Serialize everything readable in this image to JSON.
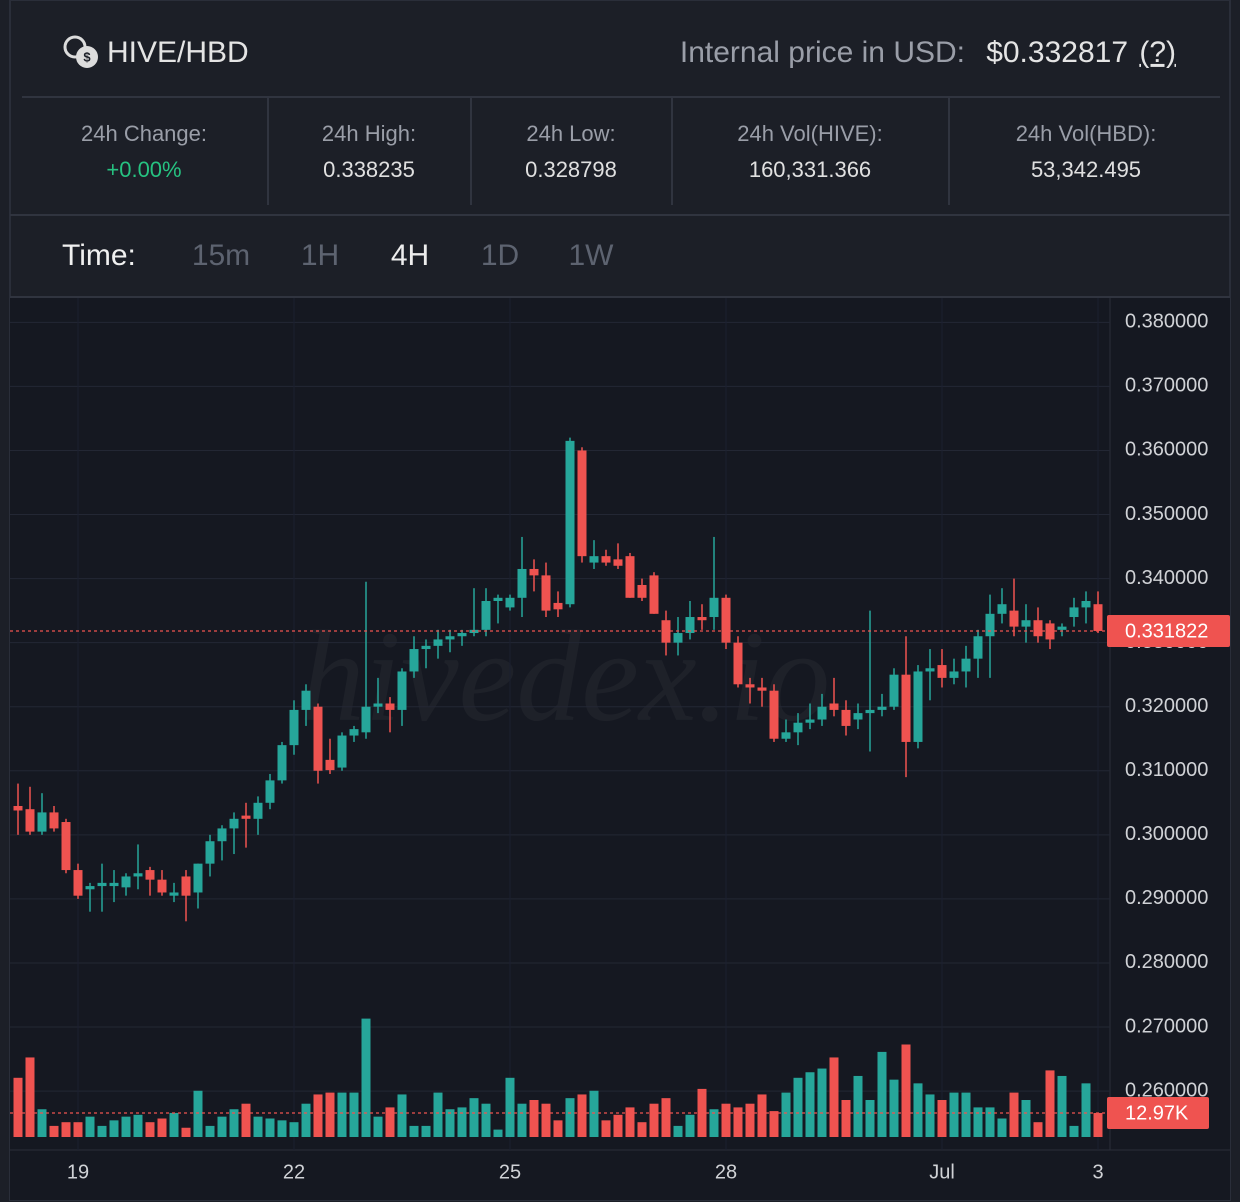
{
  "header": {
    "pair": "HIVE/HBD",
    "price_label": "Internal price in USD:",
    "price": "$0.332817",
    "help": "(?)"
  },
  "stats": [
    {
      "label": "24h Change:",
      "value": "+0.00%"
    },
    {
      "label": "24h High:",
      "value": "0.338235"
    },
    {
      "label": "24h Low:",
      "value": "0.328798"
    },
    {
      "label": "24h Vol(HIVE):",
      "value": "160,331.366"
    },
    {
      "label": "24h Vol(HBD):",
      "value": "53,342.495"
    }
  ],
  "timeframes": {
    "label": "Time:",
    "options": [
      "15m",
      "1H",
      "4H",
      "1D",
      "1W"
    ],
    "active": "4H"
  },
  "chart_data": {
    "type": "candlestick",
    "watermark": "hivedex.io",
    "up_color": "#26a69a",
    "down_color": "#ef5350",
    "grid": true,
    "xlim": [
      -0.667,
      91
    ],
    "xticks": [
      {
        "value": 5,
        "label": "19"
      },
      {
        "value": 23,
        "label": "22"
      },
      {
        "value": 41,
        "label": "25"
      },
      {
        "value": 59,
        "label": "28"
      },
      {
        "value": 77,
        "label": "Jul"
      },
      {
        "value": 90,
        "label": "3"
      }
    ],
    "ylim": [
      0.2508,
      0.3838
    ],
    "yticks": [
      {
        "value": 0.38,
        "label": "0.380000"
      },
      {
        "value": 0.37,
        "label": "0.370000"
      },
      {
        "value": 0.36,
        "label": "0.360000"
      },
      {
        "value": 0.35,
        "label": "0.350000"
      },
      {
        "value": 0.34,
        "label": "0.340000"
      },
      {
        "value": 0.33,
        "label": "0.330000"
      },
      {
        "value": 0.32,
        "label": "0.320000"
      },
      {
        "value": 0.31,
        "label": "0.310000"
      },
      {
        "value": 0.3,
        "label": "0.300000"
      },
      {
        "value": 0.29,
        "label": "0.290000"
      },
      {
        "value": 0.28,
        "label": "0.280000"
      },
      {
        "value": 0.27,
        "label": "0.270000"
      },
      {
        "value": 0.26,
        "label": "0.260000"
      }
    ],
    "candles": {
      "open": [
        0.3045,
        0.304,
        0.3005,
        0.3035,
        0.302,
        0.2945,
        0.2915,
        0.292,
        0.292,
        0.2918,
        0.2935,
        0.2945,
        0.293,
        0.2905,
        0.2935,
        0.291,
        0.2955,
        0.299,
        0.301,
        0.303,
        0.3025,
        0.305,
        0.3085,
        0.314,
        0.3195,
        0.32,
        0.3117,
        0.3105,
        0.3155,
        0.316,
        0.32,
        0.3205,
        0.3195,
        0.3255,
        0.329,
        0.3295,
        0.3305,
        0.331,
        0.3315,
        0.332,
        0.3365,
        0.3355,
        0.337,
        0.3415,
        0.3405,
        0.3362,
        0.336,
        0.36,
        0.3425,
        0.3435,
        0.343,
        0.3435,
        0.339,
        0.3405,
        0.3335,
        0.33,
        0.3315,
        0.334,
        0.334,
        0.337,
        0.33,
        0.3235,
        0.323,
        0.3225,
        0.315,
        0.316,
        0.3175,
        0.318,
        0.3205,
        0.3195,
        0.318,
        0.319,
        0.3195,
        0.32,
        0.325,
        0.3145,
        0.3255,
        0.3265,
        0.3245,
        0.3255,
        0.3275,
        0.331,
        0.3345,
        0.335,
        0.3325,
        0.3335,
        0.333,
        0.332,
        0.334,
        0.3355,
        0.336
      ],
      "high": [
        0.308,
        0.3075,
        0.3065,
        0.3045,
        0.3025,
        0.2955,
        0.2925,
        0.2955,
        0.2945,
        0.294,
        0.2985,
        0.295,
        0.2945,
        0.2925,
        0.2945,
        0.2955,
        0.3,
        0.3015,
        0.3035,
        0.305,
        0.306,
        0.3095,
        0.3145,
        0.321,
        0.3235,
        0.3205,
        0.315,
        0.316,
        0.317,
        0.3395,
        0.3245,
        0.3215,
        0.326,
        0.331,
        0.3305,
        0.332,
        0.332,
        0.332,
        0.3385,
        0.3385,
        0.3375,
        0.3375,
        0.3465,
        0.343,
        0.3425,
        0.338,
        0.362,
        0.3605,
        0.346,
        0.3445,
        0.3455,
        0.344,
        0.34,
        0.341,
        0.335,
        0.334,
        0.3365,
        0.336,
        0.3465,
        0.3375,
        0.331,
        0.3245,
        0.3245,
        0.3235,
        0.318,
        0.319,
        0.3205,
        0.322,
        0.3245,
        0.321,
        0.3205,
        0.335,
        0.322,
        0.326,
        0.331,
        0.3265,
        0.329,
        0.329,
        0.3275,
        0.3295,
        0.332,
        0.3375,
        0.3385,
        0.34,
        0.336,
        0.3355,
        0.3335,
        0.333,
        0.337,
        0.338,
        0.338
      ],
      "low": [
        0.3,
        0.3,
        0.3,
        0.3005,
        0.294,
        0.29,
        0.288,
        0.288,
        0.2895,
        0.2905,
        0.2915,
        0.2905,
        0.2905,
        0.2895,
        0.2865,
        0.2885,
        0.2935,
        0.296,
        0.297,
        0.298,
        0.3,
        0.304,
        0.308,
        0.3125,
        0.317,
        0.308,
        0.3095,
        0.31,
        0.3145,
        0.315,
        0.319,
        0.316,
        0.317,
        0.3245,
        0.326,
        0.3275,
        0.3285,
        0.3295,
        0.331,
        0.331,
        0.333,
        0.335,
        0.334,
        0.338,
        0.334,
        0.334,
        0.3355,
        0.3425,
        0.3415,
        0.342,
        0.3415,
        0.337,
        0.3365,
        0.3345,
        0.328,
        0.328,
        0.3305,
        0.332,
        0.332,
        0.329,
        0.323,
        0.3205,
        0.32,
        0.3145,
        0.3145,
        0.314,
        0.3165,
        0.317,
        0.3185,
        0.3155,
        0.3165,
        0.313,
        0.3185,
        0.3195,
        0.309,
        0.3135,
        0.321,
        0.323,
        0.3235,
        0.323,
        0.3245,
        0.3245,
        0.333,
        0.331,
        0.33,
        0.33,
        0.329,
        0.331,
        0.3325,
        0.333,
        0.3315
      ],
      "close": [
        0.3038,
        0.3005,
        0.3035,
        0.301,
        0.2945,
        0.2905,
        0.292,
        0.2925,
        0.2925,
        0.2935,
        0.294,
        0.293,
        0.291,
        0.291,
        0.2905,
        0.2955,
        0.299,
        0.301,
        0.3025,
        0.3025,
        0.305,
        0.3085,
        0.314,
        0.3195,
        0.3225,
        0.31,
        0.3101,
        0.3155,
        0.3165,
        0.32,
        0.3205,
        0.3195,
        0.3255,
        0.329,
        0.3295,
        0.3305,
        0.331,
        0.3315,
        0.332,
        0.3365,
        0.337,
        0.337,
        0.3415,
        0.3405,
        0.335,
        0.3352,
        0.3615,
        0.3435,
        0.3435,
        0.3425,
        0.342,
        0.337,
        0.337,
        0.3345,
        0.33,
        0.3315,
        0.334,
        0.3335,
        0.337,
        0.33,
        0.3235,
        0.323,
        0.3225,
        0.315,
        0.316,
        0.3175,
        0.318,
        0.32,
        0.3195,
        0.317,
        0.319,
        0.3195,
        0.32,
        0.325,
        0.3145,
        0.3255,
        0.326,
        0.3245,
        0.3255,
        0.3275,
        0.331,
        0.3345,
        0.336,
        0.3325,
        0.3335,
        0.331,
        0.3305,
        0.3325,
        0.3355,
        0.3365,
        0.331822
      ]
    },
    "vlim": [
      0,
      80000
    ],
    "volume": {
      "values": [
        32000,
        43000,
        15000,
        6000,
        8000,
        8000,
        11000,
        6000,
        9000,
        11000,
        12000,
        8000,
        10000,
        13000,
        5000,
        25000,
        6000,
        11000,
        15000,
        18000,
        11000,
        10000,
        9000,
        8000,
        18000,
        23000,
        24000,
        24000,
        24000,
        64000,
        11000,
        16000,
        23000,
        6000,
        6000,
        24000,
        15000,
        16000,
        21000,
        18000,
        4000,
        32000,
        18000,
        20000,
        18000,
        9000,
        21000,
        23000,
        25000,
        9000,
        12000,
        16000,
        8000,
        18000,
        21000,
        6000,
        12000,
        26000,
        15000,
        18000,
        16000,
        18000,
        23000,
        14000,
        24000,
        32000,
        35000,
        37000,
        43000,
        20000,
        33000,
        20000,
        46000,
        31000,
        50000,
        29000,
        23000,
        20000,
        24000,
        24000,
        16000,
        16000,
        10000,
        24000,
        20000,
        8000,
        36000,
        33000,
        6000,
        29000,
        12970
      ],
      "last_label": "12.97K"
    }
  }
}
